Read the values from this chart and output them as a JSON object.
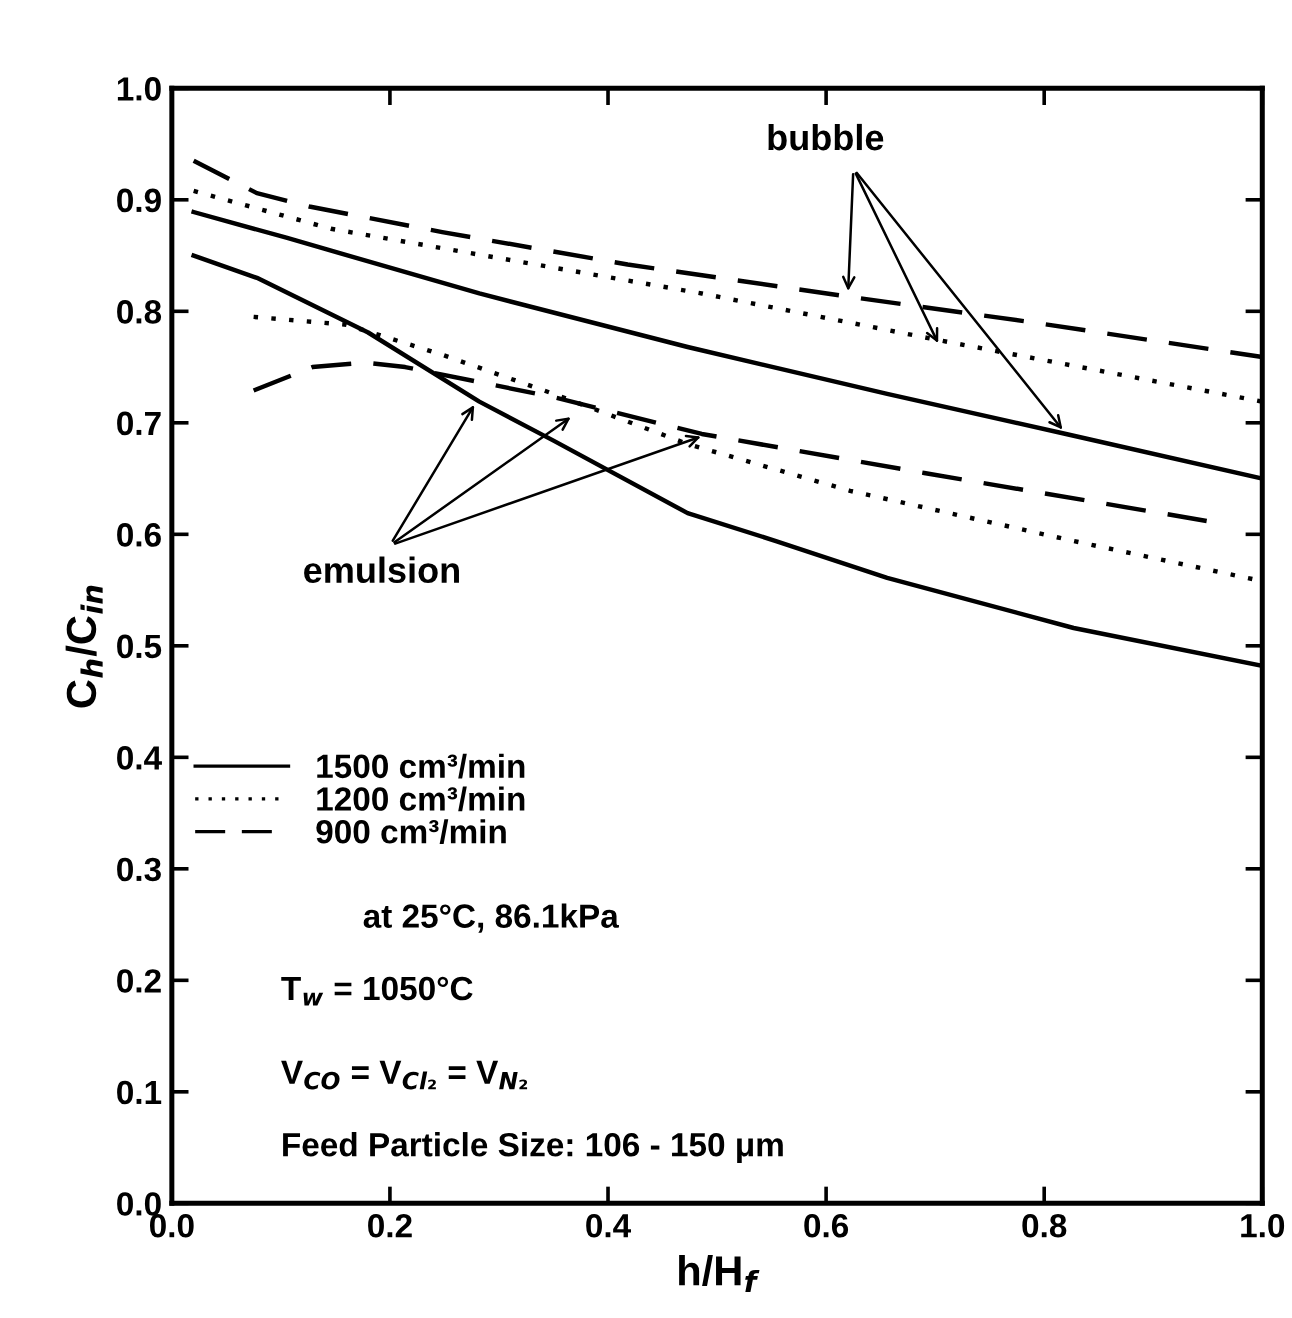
{
  "chart_data": {
    "type": "line",
    "xlabel": "h/H$_{f}$",
    "ylabel": "C$_{h}$/C$_{in}$",
    "xlim": [
      0,
      1
    ],
    "ylim": [
      0,
      1
    ],
    "xticks": [
      {
        "value": 0,
        "label": "0.0"
      },
      {
        "value": 0.2,
        "label": "0.2"
      },
      {
        "value": 0.4,
        "label": "0.4"
      },
      {
        "value": 0.6,
        "label": "0.6"
      },
      {
        "value": 0.8,
        "label": "0.8"
      },
      {
        "value": 1,
        "label": "1.0"
      }
    ],
    "yticks": [
      {
        "value": 0,
        "label": "0.0"
      },
      {
        "value": 0.1,
        "label": "0.1"
      },
      {
        "value": 0.2,
        "label": "0.2"
      },
      {
        "value": 0.3,
        "label": "0.3"
      },
      {
        "value": 0.4,
        "label": "0.4"
      },
      {
        "value": 0.5,
        "label": "0.5"
      },
      {
        "value": 0.6,
        "label": "0.6"
      },
      {
        "value": 0.7,
        "label": "0.7"
      },
      {
        "value": 0.8,
        "label": "0.8"
      },
      {
        "value": 0.9,
        "label": "0.9"
      },
      {
        "value": 1,
        "label": "1.0"
      }
    ],
    "grid": false,
    "legend": "left",
    "series": [
      {
        "name": "1500 cm³/min",
        "color": "#000000",
        "line_style": "solid",
        "x": [
          0.02,
          0.105,
          0.282,
          0.473,
          0.656,
          0.82,
          1.0
        ],
        "values": [
          0.889,
          0.866,
          0.816,
          0.768,
          0.726,
          0.69,
          0.65
        ]
      },
      {
        "name": "1200 cm³/min",
        "color": "#000000",
        "line_style": "dotted",
        "x": [
          0.02,
          0.146,
          0.316,
          0.486,
          0.704,
          0.86,
          1.0
        ],
        "values": [
          0.908,
          0.874,
          0.845,
          0.816,
          0.774,
          0.745,
          0.719
        ]
      },
      {
        "name": "900 cm³/min",
        "color": "#000000",
        "line_style": "dashed",
        "x": [
          0.02,
          0.078,
          0.126,
          0.248,
          0.418,
          0.622,
          0.79,
          1.0
        ],
        "values": [
          0.935,
          0.906,
          0.894,
          0.871,
          0.842,
          0.813,
          0.79,
          0.759
        ]
      },
      {
        "color": "#000000",
        "line_style": "solid",
        "x": [
          0.02,
          0.078,
          0.18,
          0.282,
          0.35,
          0.473,
          0.554,
          0.656,
          0.827,
          1.0
        ],
        "values": [
          0.85,
          0.83,
          0.781,
          0.719,
          0.684,
          0.619,
          0.594,
          0.561,
          0.516,
          0.482
        ]
      },
      {
        "color": "#000000",
        "line_style": "dotted",
        "x": [
          0.075,
          0.16,
          0.248,
          0.35,
          0.473,
          0.622,
          0.827,
          1.0
        ],
        "values": [
          0.795,
          0.788,
          0.761,
          0.726,
          0.681,
          0.639,
          0.594,
          0.558
        ]
      },
      {
        "color": "#000000",
        "line_style": "dashed",
        "x": [
          0.075,
          0.129,
          0.177,
          0.214,
          0.35,
          0.486,
          0.69,
          0.949
        ],
        "values": [
          0.729,
          0.75,
          0.754,
          0.75,
          0.723,
          0.69,
          0.655,
          0.612
        ]
      }
    ],
    "annotations": [
      {
        "text": "bubble",
        "x": 0.705,
        "y": 0.767
      },
      {
        "text": "emulsion",
        "x": 0.37,
        "y": 0.708
      },
      "at 25°C, 86.1kPa",
      "T$_{w}$ = 1050°C",
      "V$_{CO}$ = V$_{Cl₂}$ = V$_{N₂}$",
      "Feed Particle Size: 106 - 150 μm"
    ]
  }
}
